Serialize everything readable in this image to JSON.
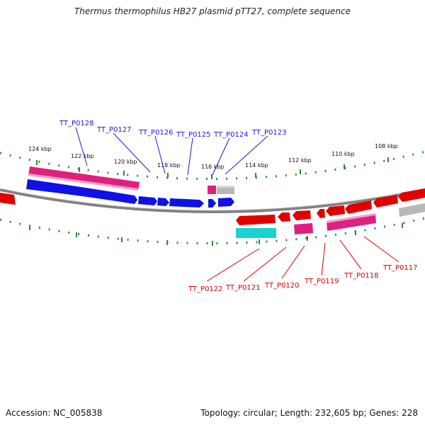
{
  "title": "Thermus thermophilus HB27 plasmid pTT27, complete sequence",
  "accession_text": "Accession: NC_005838",
  "summary_text": "Topology: circular; Length: 232,605 bp; Genes: 228",
  "colors": {
    "backbone": "#808080",
    "tick": "#2e8b2e",
    "label_top": "#1a1ad6",
    "label_bottom": "#d40000",
    "forward_blue": "#1010e8",
    "magenta": "#e0207f",
    "red": "#e00000",
    "cyan": "#19d2d2",
    "gray": "#b8b8b8"
  },
  "scale_labels": [
    "124 kbp",
    "122 kbp",
    "120 kbp",
    "118 kbp",
    "116 kbp",
    "114 kbp",
    "112 kbp",
    "110 kbp",
    "108 kbp"
  ],
  "top_labels": [
    "TT_P0128",
    "TT_P0127",
    "TT_P0126",
    "TT_P0125",
    "TT_P0124",
    "TT_P0123"
  ],
  "bottom_labels": [
    "TT_P0122",
    "TT_P0121",
    "TT_P0120",
    "TT_P0119",
    "TT_P0118",
    "TT_P0117"
  ]
}
